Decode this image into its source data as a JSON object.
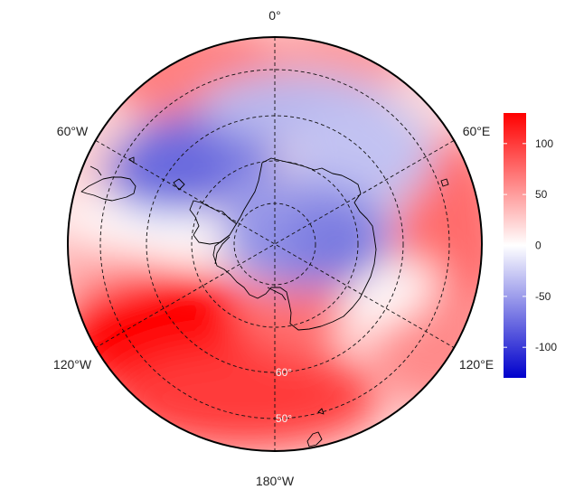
{
  "map": {
    "projection": "south-polar-stereographic",
    "longitude_labels": {
      "top": "0°",
      "upper_left": "60°W",
      "upper_right": "60°E",
      "lower_left": "120°W",
      "lower_right": "120°E",
      "bottom": "180°W"
    },
    "latitude_labels": {
      "inner": "60°",
      "outer": "50°"
    },
    "colors": {
      "negative": "#0000cc",
      "zero": "#ffffff",
      "positive": "#ff0000"
    }
  },
  "colorbar": {
    "range": [
      -130,
      130
    ],
    "ticks": [
      {
        "value": 100,
        "label": "100"
      },
      {
        "value": 50,
        "label": "50"
      },
      {
        "value": 0,
        "label": "0"
      },
      {
        "value": -50,
        "label": "-50"
      },
      {
        "value": -100,
        "label": "-100"
      }
    ]
  }
}
